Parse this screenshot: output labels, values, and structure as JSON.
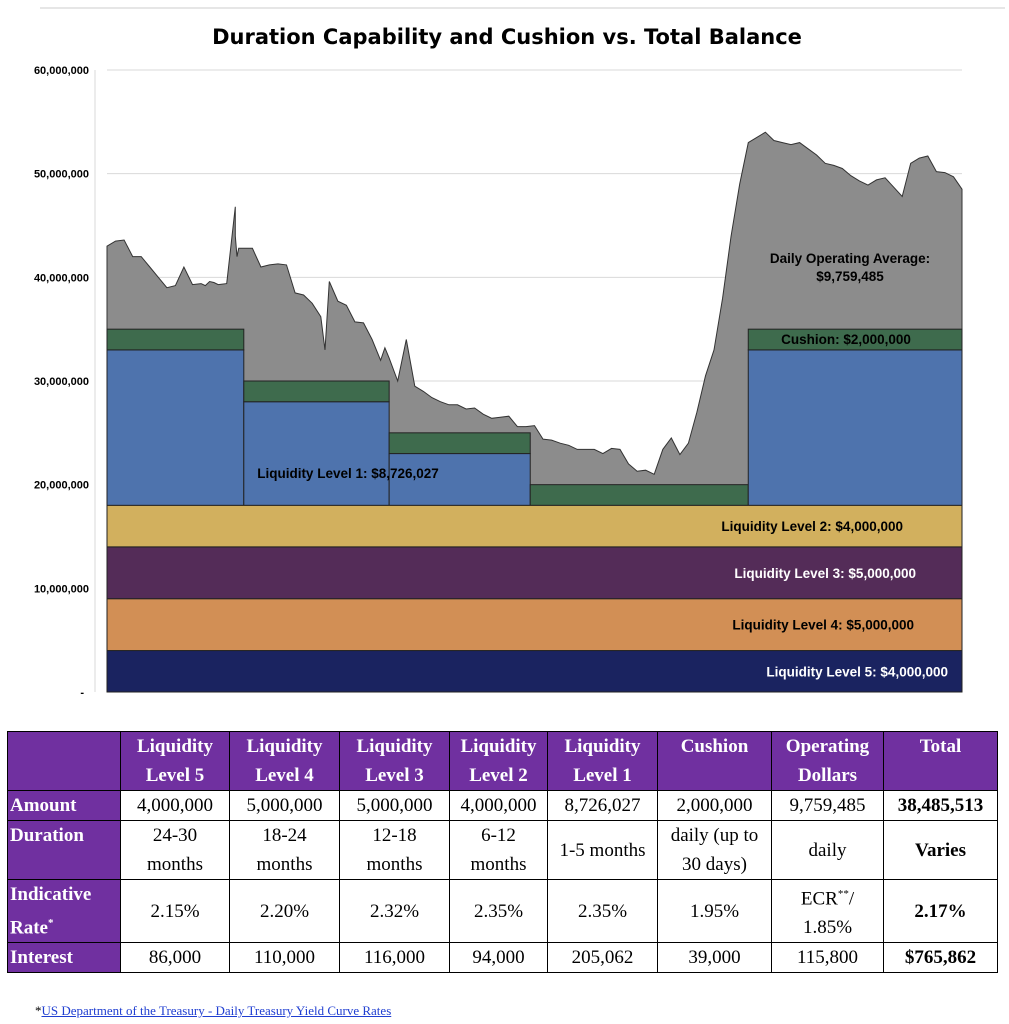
{
  "chart_data": {
    "type": "area",
    "title": "Duration Capability and Cushion vs. Total Balance",
    "ylim": [
      0,
      60000000
    ],
    "y_ticks": [
      "-",
      "10,000,000",
      "20,000,000",
      "30,000,000",
      "40,000,000",
      "50,000,000",
      "60,000,000"
    ],
    "y_tick_values": [
      0,
      10000000,
      20000000,
      30000000,
      40000000,
      50000000,
      60000000
    ],
    "grid": true,
    "x_range": [
      0,
      100
    ],
    "bands": [
      {
        "name": "Liquidity Level 5",
        "label": "Liquidity Level 5: $4,000,000",
        "from": 0,
        "to": 4000000,
        "color": "#1a2360",
        "label_color": "#ffffff"
      },
      {
        "name": "Liquidity Level 4",
        "label": "Liquidity Level 4: $5,000,000",
        "from": 4000000,
        "to": 9000000,
        "color": "#d28f55",
        "label_color": "#000000"
      },
      {
        "name": "Liquidity Level 3",
        "label": "Liquidity Level 3: $5,000,000",
        "from": 9000000,
        "to": 14000000,
        "color": "#542c58",
        "label_color": "#ffffff"
      },
      {
        "name": "Liquidity Level 2",
        "label": "Liquidity Level 2: $4,000,000",
        "from": 14000000,
        "to": 18000000,
        "color": "#d2b05e",
        "label_color": "#000000"
      }
    ],
    "level1_steps": [
      {
        "x0": 0,
        "x1": 16,
        "top": 33000000
      },
      {
        "x0": 16,
        "x1": 33,
        "top": 28000000
      },
      {
        "x0": 33,
        "x1": 49.5,
        "top": 23000000
      },
      {
        "x0": 49.5,
        "x1": 75,
        "top": 18000000
      },
      {
        "x0": 75,
        "x1": 100,
        "top": 33000000
      }
    ],
    "cushion_amount": 2000000,
    "level1_label": "Liquidity Level 1: $8,726,027",
    "cushion_label": "Cushion: $2,000,000",
    "operating_label_line1": "Daily Operating Average:",
    "operating_label_line2": "$9,759,485",
    "colors": {
      "level1": "#4e73ad",
      "cushion": "#3e6b4d",
      "total_balance": "#8c8c8c"
    },
    "total_balance": {
      "x": [
        0,
        1,
        2,
        3,
        4,
        4.5,
        5,
        6,
        7,
        8,
        9,
        10,
        11,
        11.5,
        12,
        12.5,
        13,
        14,
        15,
        15,
        15.2,
        15.4,
        15.6,
        16,
        17,
        18,
        19,
        20,
        21,
        22,
        23,
        24,
        25,
        25.5,
        26,
        27,
        28,
        29,
        30,
        31,
        32,
        32.5,
        33,
        34,
        35,
        36,
        37,
        38,
        39,
        40,
        41,
        42,
        43,
        44,
        45,
        46,
        47,
        48,
        49,
        50,
        51,
        52,
        53,
        54,
        55,
        56,
        57,
        58,
        59,
        60,
        61,
        62,
        63,
        64,
        65,
        66,
        67,
        68,
        69,
        70,
        71,
        72,
        73,
        74,
        75,
        76,
        77,
        78,
        79,
        80,
        81,
        82,
        83,
        84,
        85,
        86,
        87,
        88,
        89,
        90,
        91,
        92,
        93,
        94,
        95,
        96,
        97,
        98,
        99,
        100
      ],
      "y": [
        43000000,
        43500000,
        43600000,
        42000000,
        42000000,
        41500000,
        41000000,
        40000000,
        39000000,
        39200000,
        41000000,
        39300000,
        39400000,
        39200000,
        39600000,
        39500000,
        39300000,
        39400000,
        46800000,
        44000000,
        42000000,
        42800000,
        42800000,
        42800000,
        42800000,
        41000000,
        41200000,
        41300000,
        41200000,
        38500000,
        38300000,
        37500000,
        36200000,
        33000000,
        39600000,
        37700000,
        37300000,
        35700000,
        35600000,
        34000000,
        32000000,
        33200000,
        32200000,
        30000000,
        34000000,
        29500000,
        29000000,
        28400000,
        28000000,
        27700000,
        27700000,
        27300000,
        27400000,
        26800000,
        26400000,
        26500000,
        26600000,
        25600000,
        25600000,
        25700000,
        24400000,
        24300000,
        24000000,
        23800000,
        23400000,
        23400000,
        23400000,
        23000000,
        23500000,
        23400000,
        22000000,
        21300000,
        21400000,
        21000000,
        23400000,
        24500000,
        22900000,
        24000000,
        27000000,
        30500000,
        33000000,
        38000000,
        44000000,
        49000000,
        53000000,
        53500000,
        54000000,
        53200000,
        53000000,
        52800000,
        53000000,
        52400000,
        51800000,
        51000000,
        50800000,
        50500000,
        49800000,
        49300000,
        48900000,
        49400000,
        49600000,
        48700000,
        47800000,
        51000000,
        51500000,
        51700000,
        50200000,
        50100000,
        49700000,
        48500000
      ]
    }
  },
  "table": {
    "headers": [
      {
        "line1": "",
        "line2": ""
      },
      {
        "line1": "Liquidity",
        "line2": "Level 5"
      },
      {
        "line1": "Liquidity",
        "line2": "Level 4"
      },
      {
        "line1": "Liquidity",
        "line2": "Level 3"
      },
      {
        "line1": "Liquidity",
        "line2": "Level 2"
      },
      {
        "line1": "Liquidity",
        "line2": "Level 1"
      },
      {
        "line1": "Cushion",
        "line2": ""
      },
      {
        "line1": "Operating",
        "line2": "Dollars"
      },
      {
        "line1": "Total",
        "line2": ""
      }
    ],
    "amount": {
      "label": "Amount",
      "cells": [
        "4,000,000",
        "5,000,000",
        "5,000,000",
        "4,000,000",
        "8,726,027",
        "2,000,000",
        "9,759,485"
      ],
      "total": "38,485,513"
    },
    "duration": {
      "label": "Duration",
      "cells": [
        {
          "l1": "24-30",
          "l2": "months"
        },
        {
          "l1": "18-24",
          "l2": "months"
        },
        {
          "l1": "12-18",
          "l2": "months"
        },
        {
          "l1": "6-12",
          "l2": "months"
        },
        {
          "l1": "1-5 months",
          "l2": ""
        },
        {
          "l1": "daily (up to",
          "l2": "30 days)"
        },
        {
          "l1": "daily",
          "l2": ""
        }
      ],
      "total": "Varies"
    },
    "rate": {
      "label1": "Indicative",
      "label2": "Rate",
      "label_sup": "*",
      "cells": [
        "2.15%",
        "2.20%",
        "2.32%",
        "2.35%",
        "2.35%",
        "1.95%"
      ],
      "ecr_text": "ECR",
      "ecr_sup": "**",
      "ecr_suffix": "/",
      "ecr_line2": "1.85%",
      "total": "2.17%"
    },
    "interest": {
      "label": "Interest",
      "cells": [
        "86,000",
        "110,000",
        "116,000",
        "94,000",
        "205,062",
        "39,000",
        "115,800"
      ],
      "total": "$765,862"
    }
  },
  "footnote": {
    "mark": "*",
    "link_text": "US Department of the Treasury - Daily Treasury Yield Curve Rates"
  }
}
